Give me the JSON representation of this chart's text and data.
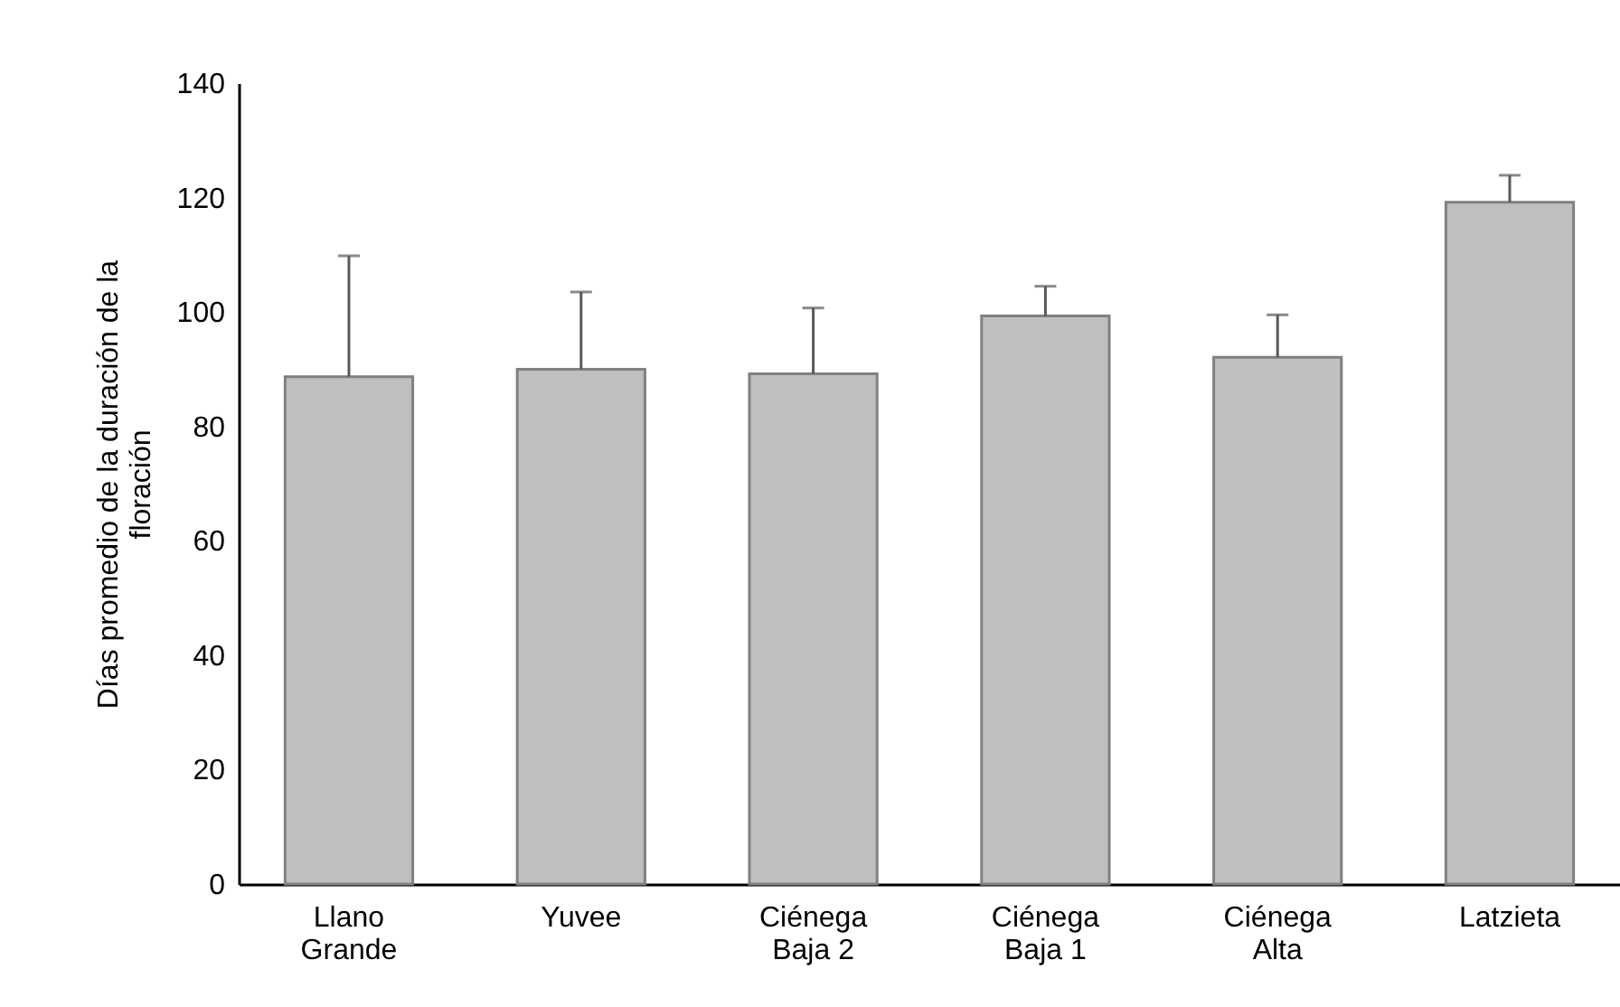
{
  "chart_data": {
    "type": "bar",
    "ylabel": "Días promedio de la duración de la floración",
    "categories": [
      "Llano Grande",
      "Yuvee",
      "Ciénega Baja 2",
      "Ciénega Baja 1",
      "Ciénega Alta",
      "Latzieta"
    ],
    "values": [
      88.7,
      90.0,
      89.2,
      99.3,
      92.1,
      119.2
    ],
    "errors": [
      [
        88.7,
        109.8
      ],
      [
        90.0,
        103.5
      ],
      [
        89.2,
        100.7
      ],
      [
        99.3,
        104.5
      ],
      [
        92.1,
        99.5
      ],
      [
        119.2,
        123.9
      ]
    ],
    "color": "#bfbfbf",
    "ylim": [
      0,
      140
    ],
    "yticks": [
      0,
      20,
      40,
      60,
      80,
      100,
      120,
      140
    ],
    "grid": false
  }
}
